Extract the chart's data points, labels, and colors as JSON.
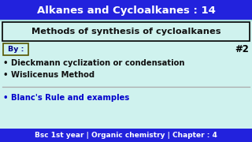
{
  "title": "Alkanes and Cycloalkanes : 14",
  "title_bg": "#2222dd",
  "title_color": "#ffffff",
  "main_bg": "#cff2ee",
  "subtitle": "Methods of synthesis of cycloalkanes",
  "subtitle_border": "#000000",
  "by_label": "By :",
  "by_border": "#555500",
  "by_text_color": "#000088",
  "hash_label": "#2",
  "hash_color": "#000000",
  "bullet1": "• Dieckmann cyclization or condensation",
  "bullet2": "• Wislicenus Method",
  "bullet3": "• Blanc's Rule and examples",
  "footer": "Bsc 1st year | Organic chemistry | Chapter : 4",
  "footer_bg": "#2222dd",
  "footer_color": "#ffffff",
  "bullet_color": "#111111",
  "bullet3_color": "#0000cc",
  "separator_color": "#aaaaaa",
  "title_fontsize": 9.5,
  "subtitle_fontsize": 8.2,
  "bullet_fontsize": 7.2,
  "footer_fontsize": 6.5
}
